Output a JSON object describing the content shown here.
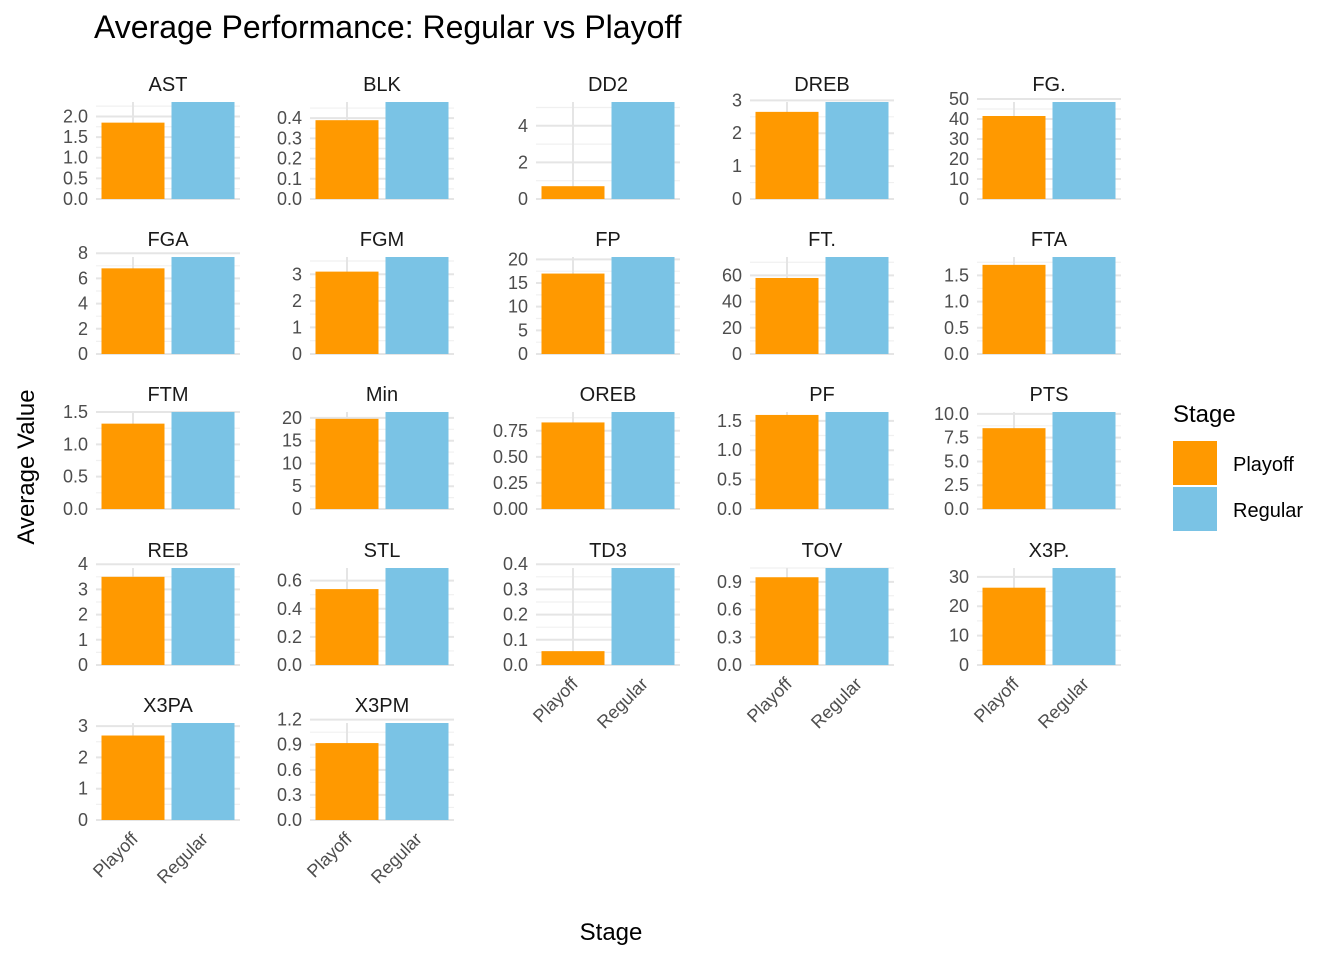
{
  "chart_data": {
    "type": "bar",
    "title": "Average Performance: Regular vs Playoff",
    "xlabel": "Stage",
    "ylabel": "Average Value",
    "categories": [
      "Playoff",
      "Regular"
    ],
    "legend": {
      "title": "Stage",
      "placement": "right",
      "entries": [
        {
          "label": "Playoff",
          "color": "#FF9900"
        },
        {
          "label": "Regular",
          "color": "#7AC3E5"
        }
      ]
    },
    "grid": true,
    "facets": [
      {
        "name": "AST",
        "values": [
          1.85,
          2.35
        ],
        "ylim": [
          0,
          2.35
        ],
        "ticks": [
          "0.0",
          "0.5",
          "1.0",
          "1.5",
          "2.0"
        ],
        "tick_values": [
          0,
          0.5,
          1.0,
          1.5,
          2.0
        ]
      },
      {
        "name": "BLK",
        "values": [
          0.39,
          0.48
        ],
        "ylim": [
          0,
          0.48
        ],
        "ticks": [
          "0.0",
          "0.1",
          "0.2",
          "0.3",
          "0.4"
        ],
        "tick_values": [
          0,
          0.1,
          0.2,
          0.3,
          0.4
        ]
      },
      {
        "name": "DD2",
        "values": [
          0.7,
          5.3
        ],
        "ylim": [
          0,
          5.3
        ],
        "ticks": [
          "0",
          "2",
          "4"
        ],
        "tick_values": [
          0,
          2,
          4
        ]
      },
      {
        "name": "DREB",
        "values": [
          2.65,
          2.95
        ],
        "ylim": [
          0,
          2.95
        ],
        "ticks": [
          "0",
          "1",
          "2",
          "3"
        ],
        "tick_values": [
          0,
          1,
          2,
          3
        ]
      },
      {
        "name": "FG.",
        "values": [
          41.5,
          48.5
        ],
        "ylim": [
          0,
          48.5
        ],
        "ticks": [
          "0",
          "10",
          "20",
          "30",
          "40",
          "50"
        ],
        "tick_values": [
          0,
          10,
          20,
          30,
          40,
          50
        ]
      },
      {
        "name": "FGA",
        "values": [
          6.8,
          7.7
        ],
        "ylim": [
          0,
          7.7
        ],
        "ticks": [
          "0",
          "2",
          "4",
          "6",
          "8"
        ],
        "tick_values": [
          0,
          2,
          4,
          6,
          8
        ]
      },
      {
        "name": "FGM",
        "values": [
          3.1,
          3.65
        ],
        "ylim": [
          0,
          3.65
        ],
        "ticks": [
          "0",
          "1",
          "2",
          "3"
        ],
        "tick_values": [
          0,
          1,
          2,
          3
        ]
      },
      {
        "name": "FP",
        "values": [
          17.0,
          20.5
        ],
        "ylim": [
          0,
          20.5
        ],
        "ticks": [
          "0",
          "5",
          "10",
          "15",
          "20"
        ],
        "tick_values": [
          0,
          5,
          10,
          15,
          20
        ]
      },
      {
        "name": "FT.",
        "values": [
          58,
          74
        ],
        "ylim": [
          0,
          74
        ],
        "ticks": [
          "0",
          "20",
          "40",
          "60"
        ],
        "tick_values": [
          0,
          20,
          40,
          60
        ]
      },
      {
        "name": "FTA",
        "values": [
          1.7,
          1.85
        ],
        "ylim": [
          0,
          1.85
        ],
        "ticks": [
          "0.0",
          "0.5",
          "1.0",
          "1.5"
        ],
        "tick_values": [
          0,
          0.5,
          1.0,
          1.5
        ]
      },
      {
        "name": "FTM",
        "values": [
          1.32,
          1.5
        ],
        "ylim": [
          0,
          1.5
        ],
        "ticks": [
          "0.0",
          "0.5",
          "1.0",
          "1.5"
        ],
        "tick_values": [
          0,
          0.5,
          1.0,
          1.5
        ]
      },
      {
        "name": "Min",
        "values": [
          19.8,
          21.3
        ],
        "ylim": [
          0,
          21.3
        ],
        "ticks": [
          "0",
          "5",
          "10",
          "15",
          "20"
        ],
        "tick_values": [
          0,
          5,
          10,
          15,
          20
        ]
      },
      {
        "name": "OREB",
        "values": [
          0.83,
          0.93
        ],
        "ylim": [
          0,
          0.93
        ],
        "ticks": [
          "0.00",
          "0.25",
          "0.50",
          "0.75"
        ],
        "tick_values": [
          0,
          0.25,
          0.5,
          0.75
        ]
      },
      {
        "name": "PF",
        "values": [
          1.6,
          1.65
        ],
        "ylim": [
          0,
          1.65
        ],
        "ticks": [
          "0.0",
          "0.5",
          "1.0",
          "1.5"
        ],
        "tick_values": [
          0,
          0.5,
          1.0,
          1.5
        ]
      },
      {
        "name": "PTS",
        "values": [
          8.5,
          10.2
        ],
        "ylim": [
          0,
          10.2
        ],
        "ticks": [
          "0.0",
          "2.5",
          "5.0",
          "7.5",
          "10.0"
        ],
        "tick_values": [
          0,
          2.5,
          5.0,
          7.5,
          10.0
        ]
      },
      {
        "name": "REB",
        "values": [
          3.5,
          3.85
        ],
        "ylim": [
          0,
          3.85
        ],
        "ticks": [
          "0",
          "1",
          "2",
          "3",
          "4"
        ],
        "tick_values": [
          0,
          1,
          2,
          3,
          4
        ]
      },
      {
        "name": "STL",
        "values": [
          0.54,
          0.69
        ],
        "ylim": [
          0,
          0.69
        ],
        "ticks": [
          "0.0",
          "0.2",
          "0.4",
          "0.6"
        ],
        "tick_values": [
          0,
          0.2,
          0.4,
          0.6
        ]
      },
      {
        "name": "TD3",
        "values": [
          0.055,
          0.385
        ],
        "ylim": [
          0,
          0.385
        ],
        "ticks": [
          "0.0",
          "0.1",
          "0.2",
          "0.3",
          "0.4"
        ],
        "tick_values": [
          0,
          0.1,
          0.2,
          0.3,
          0.4
        ]
      },
      {
        "name": "TOV",
        "values": [
          0.95,
          1.05
        ],
        "ylim": [
          0,
          1.05
        ],
        "ticks": [
          "0.0",
          "0.3",
          "0.6",
          "0.9"
        ],
        "tick_values": [
          0,
          0.3,
          0.6,
          0.9
        ]
      },
      {
        "name": "X3P.",
        "values": [
          26.3,
          33.0
        ],
        "ylim": [
          0,
          33.0
        ],
        "ticks": [
          "0",
          "10",
          "20",
          "30"
        ],
        "tick_values": [
          0,
          10,
          20,
          30
        ]
      },
      {
        "name": "X3PA",
        "values": [
          2.7,
          3.1
        ],
        "ylim": [
          0,
          3.1
        ],
        "ticks": [
          "0",
          "1",
          "2",
          "3"
        ],
        "tick_values": [
          0,
          1,
          2,
          3
        ]
      },
      {
        "name": "X3PM",
        "values": [
          0.92,
          1.16
        ],
        "ylim": [
          0,
          1.16
        ],
        "ticks": [
          "0.0",
          "0.3",
          "0.6",
          "0.9",
          "1.2"
        ],
        "tick_values": [
          0,
          0.3,
          0.6,
          0.9,
          1.2
        ]
      }
    ]
  }
}
